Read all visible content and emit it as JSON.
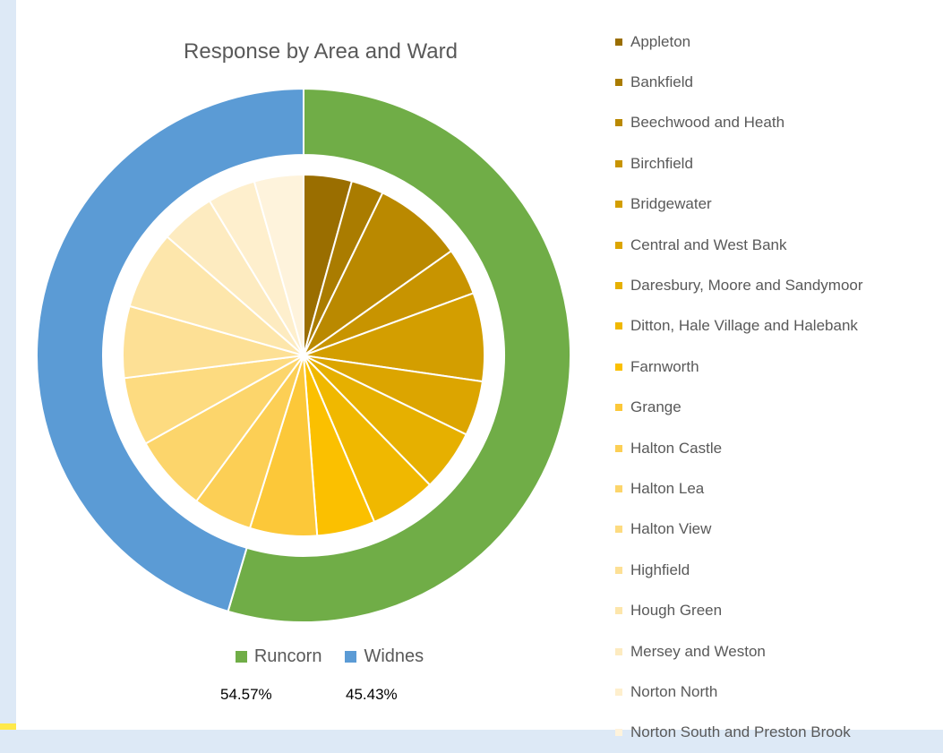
{
  "chart_data": {
    "type": "pie",
    "title": "Response by Area and Ward",
    "outer_ring": {
      "categories": [
        "Runcorn",
        "Widnes"
      ],
      "values": [
        54.57,
        45.43
      ],
      "value_labels": [
        "54.57%",
        "45.43%"
      ],
      "colors": [
        "#70ad47",
        "#5b9bd5"
      ]
    },
    "inner_pie": {
      "categories": [
        "Appleton",
        "Bankfield",
        "Beechwood and Heath",
        "Birchfield",
        "Bridgewater",
        "Central and West Bank",
        "Daresbury, Moore and Sandymoor",
        "Ditton, Hale Village and Halebank",
        "Farnworth",
        "Grange",
        "Halton Castle",
        "Halton Lea",
        "Halton View",
        "Highfield",
        "Hough Green",
        "Mersey and Weston",
        "Norton North",
        "Norton South and Preston Brook"
      ],
      "values": [
        4.3,
        2.9,
        8.0,
        4.2,
        7.9,
        4.9,
        5.5,
        5.9,
        5.2,
        6.0,
        5.3,
        6.8,
        6.1,
        6.4,
        7.0,
        4.9,
        4.3,
        4.4
      ],
      "colors": [
        "#9a6e00",
        "#aa7c00",
        "#ba8900",
        "#c89400",
        "#d39e00",
        "#dca500",
        "#e6b000",
        "#f0b800",
        "#fbc000",
        "#fcc839",
        "#fccf55",
        "#fcd56b",
        "#fddb80",
        "#fde095",
        "#fde6ab",
        "#fdebc0",
        "#feefcd",
        "#fef3dc"
      ]
    },
    "legend_position": "right"
  }
}
